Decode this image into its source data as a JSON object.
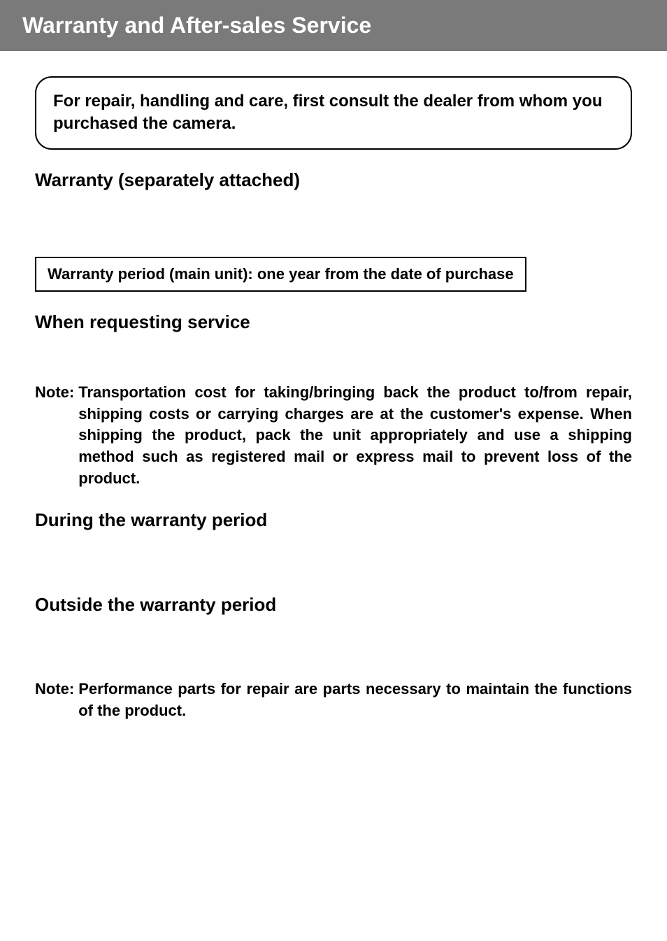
{
  "header": {
    "title": "Warranty and After-sales Service"
  },
  "callout": {
    "text": "For repair, handling and care, first consult the dealer from whom you purchased the camera."
  },
  "sections": {
    "warranty": {
      "title": "Warranty (separately attached)",
      "box_text": "Warranty period (main unit): one year from the date of purchase"
    },
    "requesting": {
      "title": "When requesting service"
    },
    "note1": {
      "label": "Note:",
      "body": "Transportation cost for taking/bringing back the product to/from repair, shipping costs or carrying charges are at the customer's expense. When shipping the product, pack the unit appropriately and use a shipping method such as registered mail or express mail to prevent loss of the product."
    },
    "during": {
      "title": "During the warranty period"
    },
    "outside": {
      "title": "Outside the warranty period"
    },
    "note2": {
      "label": "Note:",
      "body": "Performance parts for repair are parts necessary to maintain the functions of the product."
    }
  },
  "colors": {
    "header_bg": "#7a7a7a",
    "header_text": "#ffffff",
    "body_bg": "#ffffff",
    "text": "#000000",
    "border": "#000000"
  },
  "typography": {
    "header_fontsize": 32,
    "section_title_fontsize": 26,
    "callout_fontsize": 24,
    "box_fontsize": 22,
    "note_fontsize": 22,
    "font_family": "Arial, Helvetica, sans-serif"
  }
}
